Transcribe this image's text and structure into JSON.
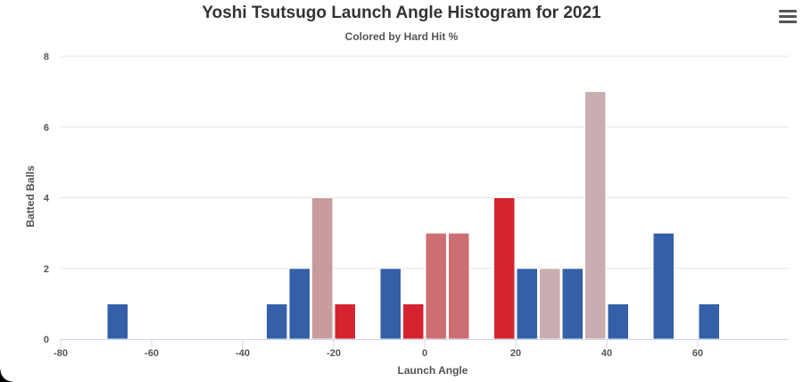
{
  "menu_icon": "hamburger-menu-icon",
  "chart_data": {
    "type": "bar",
    "title": "Yoshi Tsutsugo Launch Angle Histogram for 2021",
    "subtitle": "Colored by Hard Hit %",
    "xlabel": "Launch Angle",
    "ylabel": "Batted Balls",
    "xlim": [
      -80,
      80
    ],
    "ylim": [
      0,
      8
    ],
    "xticks": [
      -80,
      -60,
      -40,
      -20,
      0,
      20,
      40,
      60
    ],
    "yticks": [
      0,
      2,
      4,
      6,
      8
    ],
    "bin_width": 5,
    "grid": true,
    "legend": "none",
    "bars": [
      {
        "bin_start": -70,
        "value": 1,
        "color": "#3560a8"
      },
      {
        "bin_start": -35,
        "value": 1,
        "color": "#3560a8"
      },
      {
        "bin_start": -30,
        "value": 2,
        "color": "#3560a8"
      },
      {
        "bin_start": -25,
        "value": 4,
        "color": "#c89c9e"
      },
      {
        "bin_start": -20,
        "value": 1,
        "color": "#d62330"
      },
      {
        "bin_start": -10,
        "value": 2,
        "color": "#3560a8"
      },
      {
        "bin_start": -5,
        "value": 1,
        "color": "#d62330"
      },
      {
        "bin_start": 0,
        "value": 3,
        "color": "#cd6e73"
      },
      {
        "bin_start": 5,
        "value": 3,
        "color": "#cd6e73"
      },
      {
        "bin_start": 15,
        "value": 4,
        "color": "#d62330"
      },
      {
        "bin_start": 20,
        "value": 2,
        "color": "#3560a8"
      },
      {
        "bin_start": 25,
        "value": 2,
        "color": "#c9aeb1"
      },
      {
        "bin_start": 30,
        "value": 2,
        "color": "#3560a8"
      },
      {
        "bin_start": 35,
        "value": 7,
        "color": "#c9aeb1"
      },
      {
        "bin_start": 40,
        "value": 1,
        "color": "#3560a8"
      },
      {
        "bin_start": 50,
        "value": 3,
        "color": "#3560a8"
      },
      {
        "bin_start": 60,
        "value": 1,
        "color": "#3560a8"
      }
    ]
  }
}
